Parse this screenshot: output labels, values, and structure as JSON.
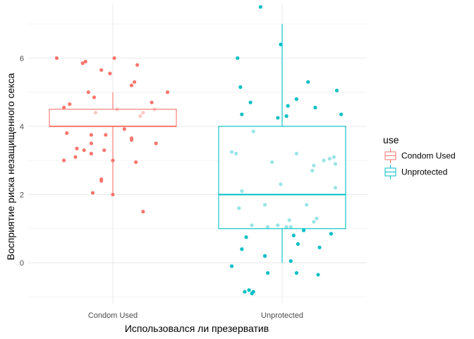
{
  "chart_data": {
    "type": "box",
    "xlabel": "Использовался ли презерватив",
    "ylabel": "Восприятие риска незащищенного секса",
    "categories": [
      "Condom Used",
      "Unprotected"
    ],
    "ylim": [
      -1.2,
      7.6
    ],
    "yticks": [
      0,
      2,
      4,
      6
    ],
    "grid": true,
    "legend": {
      "title": "use",
      "position": "right",
      "entries": [
        "Condom Used",
        "Unprotected"
      ]
    },
    "colors": {
      "Condom Used": "#F8766D",
      "Unprotected": "#00BFC4",
      "grid": "#EBEBEB",
      "background": "#FFFFFF"
    },
    "series": [
      {
        "name": "Condom Used",
        "box": {
          "whisker_low": 2.0,
          "q1": 4.0,
          "median": 4.0,
          "q3": 4.5,
          "whisker_high": 5.0
        },
        "points": [
          [
            -0.39,
            6.0
          ],
          [
            -0.19,
            5.9
          ],
          [
            -0.21,
            5.85
          ],
          [
            -0.08,
            5.65
          ],
          [
            0.01,
            6.0
          ],
          [
            0.17,
            5.8
          ],
          [
            0.15,
            5.3
          ],
          [
            -0.02,
            5.55
          ],
          [
            0.13,
            5.2
          ],
          [
            0.38,
            5.0
          ],
          [
            -0.17,
            5.0
          ],
          [
            -0.13,
            4.85
          ],
          [
            -0.3,
            4.65
          ],
          [
            -0.34,
            4.55
          ],
          [
            0.27,
            4.7
          ],
          [
            0.29,
            4.5
          ],
          [
            0.21,
            4.4
          ],
          [
            0.19,
            4.3
          ],
          [
            -0.12,
            4.4
          ],
          [
            0.03,
            4.5
          ],
          [
            0.08,
            3.92
          ],
          [
            -0.32,
            3.8
          ],
          [
            -0.15,
            3.75
          ],
          [
            -0.05,
            3.75
          ],
          [
            -0.15,
            3.5
          ],
          [
            0.13,
            3.65
          ],
          [
            0.13,
            3.6
          ],
          [
            0.3,
            3.5
          ],
          [
            -0.25,
            3.35
          ],
          [
            -0.2,
            3.3
          ],
          [
            -0.06,
            3.3
          ],
          [
            -0.26,
            3.1
          ],
          [
            -0.15,
            3.2
          ],
          [
            0.0,
            3.0
          ],
          [
            -0.34,
            3.0
          ],
          [
            0.16,
            2.95
          ],
          [
            -0.08,
            2.45
          ],
          [
            -0.08,
            2.4
          ],
          [
            -0.14,
            2.05
          ],
          [
            0.0,
            2.0
          ],
          [
            0.21,
            1.5
          ]
        ]
      },
      {
        "name": "Unprotected",
        "box": {
          "whisker_low": 0.0,
          "q1": 1.0,
          "median": 2.0,
          "q3": 4.0,
          "whisker_high": 7.0
        },
        "points": [
          [
            -0.15,
            7.5
          ],
          [
            -0.01,
            6.4
          ],
          [
            -0.31,
            6.0
          ],
          [
            -0.29,
            5.15
          ],
          [
            0.18,
            5.3
          ],
          [
            0.38,
            5.05
          ],
          [
            -0.22,
            4.7
          ],
          [
            0.1,
            4.8
          ],
          [
            0.04,
            4.6
          ],
          [
            -0.28,
            4.35
          ],
          [
            0.23,
            4.55
          ],
          [
            0.41,
            4.35
          ],
          [
            0.03,
            4.3
          ],
          [
            -0.03,
            4.25
          ],
          [
            -0.2,
            3.85
          ],
          [
            -0.35,
            3.25
          ],
          [
            -0.32,
            3.2
          ],
          [
            0.1,
            3.2
          ],
          [
            0.29,
            3.0
          ],
          [
            0.33,
            3.05
          ],
          [
            0.36,
            3.1
          ],
          [
            0.37,
            2.9
          ],
          [
            -0.07,
            2.95
          ],
          [
            0.22,
            2.85
          ],
          [
            0.21,
            2.7
          ],
          [
            -0.01,
            2.3
          ],
          [
            0.37,
            2.2
          ],
          [
            -0.28,
            2.1
          ],
          [
            -0.12,
            1.7
          ],
          [
            0.17,
            1.7
          ],
          [
            -0.3,
            1.6
          ],
          [
            0.24,
            1.3
          ],
          [
            0.22,
            1.2
          ],
          [
            0.05,
            1.25
          ],
          [
            -0.21,
            1.1
          ],
          [
            -0.1,
            1.05
          ],
          [
            -0.03,
            1.1
          ],
          [
            0.03,
            1.05
          ],
          [
            0.06,
            1.05
          ],
          [
            -0.25,
            0.75
          ],
          [
            0.08,
            0.8
          ],
          [
            0.15,
            0.95
          ],
          [
            0.34,
            0.85
          ],
          [
            0.11,
            0.55
          ],
          [
            0.26,
            0.45
          ],
          [
            -0.28,
            0.4
          ],
          [
            -0.12,
            0.2
          ],
          [
            0.06,
            0.05
          ],
          [
            -0.35,
            -0.1
          ],
          [
            -0.1,
            -0.3
          ],
          [
            0.1,
            -0.3
          ],
          [
            0.25,
            -0.35
          ],
          [
            -0.26,
            -0.85
          ],
          [
            -0.23,
            -0.8
          ],
          [
            -0.21,
            -0.9
          ],
          [
            -0.2,
            -0.85
          ]
        ]
      }
    ]
  }
}
